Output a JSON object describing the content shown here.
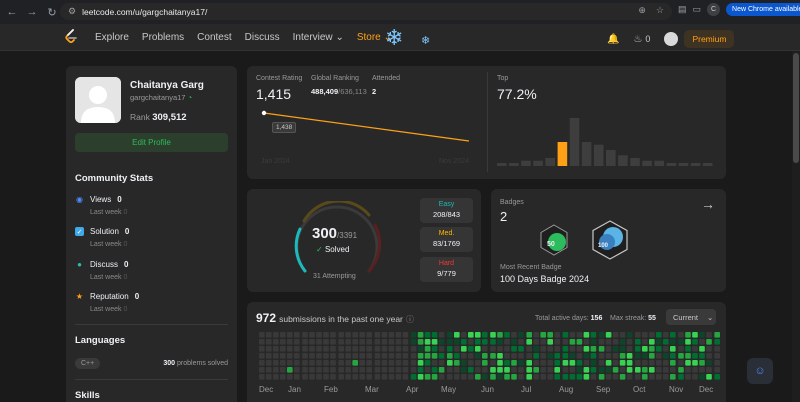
{
  "browser": {
    "url": "leetcode.com/u/gargchaitanya17/",
    "profile_initial": "C",
    "new_chrome_label": "New Chrome available",
    "icons": [
      "back-icon",
      "forward-icon",
      "reload-icon",
      "site-settings-icon",
      "zoom-icon",
      "bookmark-star-icon",
      "extensions-icon",
      "menu-kebab-icon"
    ]
  },
  "navbar": {
    "items": [
      "Explore",
      "Problems",
      "Contest",
      "Discuss",
      "Interview",
      "Store"
    ],
    "streak_count": "0",
    "premium_label": "Premium",
    "accent": "#ffa116"
  },
  "profile": {
    "name": "Chaitanya Garg",
    "handle": "gargchaitanya17",
    "rank_label": "Rank",
    "rank_value": "309,512",
    "edit_label": "Edit Profile"
  },
  "community": {
    "title": "Community Stats",
    "stats": [
      {
        "label": "Views",
        "value": "0",
        "sub_label": "Last week",
        "sub_value": "0",
        "icon": "eye-icon",
        "color": "#4e8cff"
      },
      {
        "label": "Solution",
        "value": "0",
        "sub_label": "Last week",
        "sub_value": "0",
        "icon": "checkbox-icon",
        "color": "#40a9e8"
      },
      {
        "label": "Discuss",
        "value": "0",
        "sub_label": "Last week",
        "sub_value": "0",
        "icon": "chat-icon",
        "color": "#2cbbab"
      },
      {
        "label": "Reputation",
        "value": "0",
        "sub_label": "Last week",
        "sub_value": "0",
        "icon": "star-icon",
        "color": "#ffa116"
      }
    ]
  },
  "languages": {
    "title": "Languages",
    "items": [
      {
        "name": "C++",
        "count": "300",
        "suffix": "problems solved"
      }
    ]
  },
  "skills": {
    "title": "Skills"
  },
  "contest": {
    "rating_label": "Contest Rating",
    "rating": "1,415",
    "global_label": "Global Ranking",
    "global_rank": "488,409",
    "global_total": "/636,113",
    "attended_label": "Attended",
    "attended": "2",
    "top_label": "Top",
    "top_value": "77.2%",
    "tooltip": "1,438",
    "date_start": "Jan 2024",
    "date_end": "Nov 2024",
    "line_color": "#ffa116"
  },
  "chart_data": {
    "type": "bar",
    "values": [
      1,
      1,
      2,
      2,
      3,
      9,
      18,
      9,
      8,
      6,
      4,
      3,
      2,
      2,
      1,
      1,
      1,
      1
    ],
    "highlight_index": 5,
    "highlight_color": "#ffa116",
    "bar_color": "#3e3e3e",
    "title": "",
    "xlabel": "",
    "ylabel": ""
  },
  "problems": {
    "solved": "300",
    "total": "/3391",
    "solved_label": "Solved",
    "attempting": "31 Attempting",
    "difficulties": [
      {
        "name": "Easy",
        "value": "208/843",
        "color": "#1cbaba",
        "fraction": 0.247
      },
      {
        "name": "Med.",
        "value": "83/1769",
        "color": "#ffb700",
        "fraction": 0.047
      },
      {
        "name": "Hard",
        "value": "9/779",
        "color": "#f63737",
        "fraction": 0.012
      }
    ]
  },
  "badges": {
    "label": "Badges",
    "count": "2",
    "recent_label": "Most Recent Badge",
    "recent_name": "100 Days Badge 2024"
  },
  "submissions": {
    "count": "972",
    "label": "submissions in the past one year",
    "active_days_label": "Total active days:",
    "active_days": "156",
    "max_streak_label": "Max streak:",
    "max_streak": "55",
    "period_label": "Current",
    "months": [
      "Dec",
      "Jan",
      "Feb",
      "Mar",
      "Apr",
      "May",
      "Jun",
      "Jul",
      "Aug",
      "Sep",
      "Oct",
      "Nov",
      "Dec"
    ]
  }
}
